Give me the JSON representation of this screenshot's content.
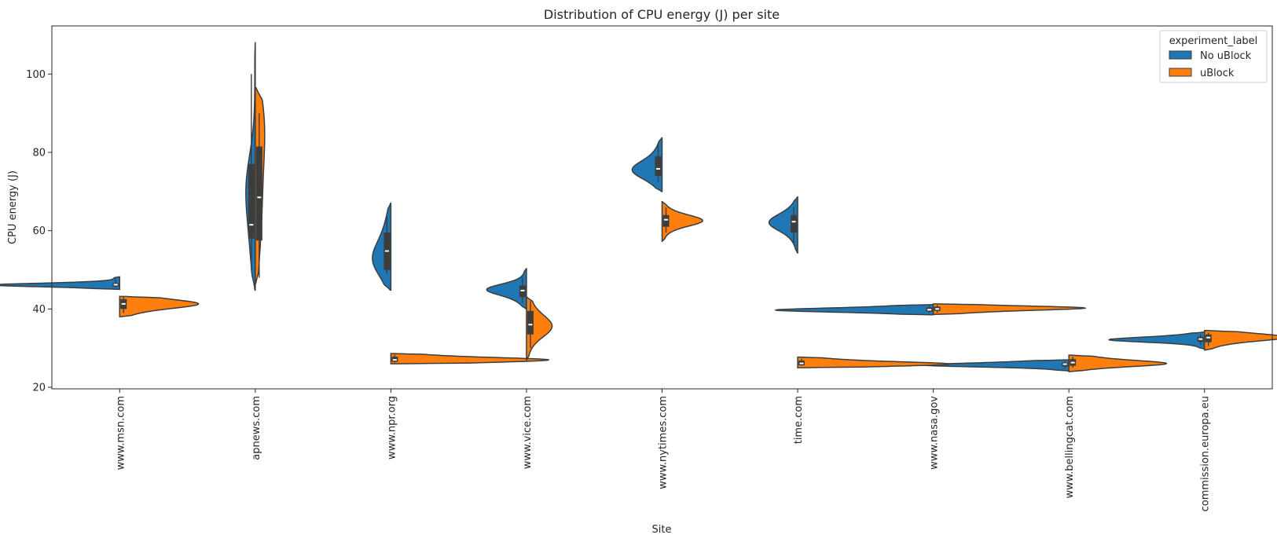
{
  "chart_data": {
    "type": "violin",
    "split": true,
    "title": "Distribution of CPU energy (J) per site",
    "xlabel": "Site",
    "ylabel": "CPU energy (J)",
    "ylim": [
      19.6,
      112.3
    ],
    "yticks": [
      20,
      40,
      60,
      80,
      100
    ],
    "grid": false,
    "legend": {
      "title": "experiment_label",
      "position": "top-right",
      "entries": [
        {
          "name": "No uBlock",
          "color": "#1f77b4"
        },
        {
          "name": "uBlock",
          "color": "#ff7f0e"
        }
      ]
    },
    "categories": [
      "www.msn.com",
      "apnews.com",
      "www.npr.org",
      "www.vice.com",
      "www.nytimes.com",
      "time.com",
      "www.nasa.gov",
      "www.bellingcat.com",
      "commission.europa.eu"
    ],
    "series": [
      {
        "name": "No uBlock",
        "color": "#1f77b4",
        "values": [
          {
            "min": 45.5,
            "q1": 45.7,
            "median": 46.2,
            "q3": 46.6,
            "max": 47.6,
            "range": [
              45.0,
              48.2
            ],
            "peak": 46.1
          },
          {
            "min": 50.0,
            "q1": 58.0,
            "median": 61.5,
            "q3": 77.0,
            "max": 100.0,
            "range": [
              44.8,
              108.0
            ],
            "peak": 72.0
          },
          {
            "min": 49.0,
            "q1": 50.0,
            "median": 54.8,
            "q3": 59.5,
            "max": 63.5,
            "range": [
              44.8,
              67.0
            ],
            "peak": 52.5
          },
          {
            "min": 41.5,
            "q1": 43.0,
            "median": 44.7,
            "q3": 46.0,
            "max": 48.0,
            "range": [
              40.0,
              50.3
            ],
            "peak": 45.0
          },
          {
            "min": 72.5,
            "q1": 74.0,
            "median": 75.8,
            "q3": 79.0,
            "max": 82.0,
            "range": [
              70.0,
              83.7
            ],
            "peak": 75.5
          },
          {
            "min": 57.0,
            "q1": 59.5,
            "median": 62.3,
            "q3": 64.0,
            "max": 66.0,
            "range": [
              54.3,
              68.6
            ],
            "peak": 62.0
          },
          {
            "min": 39.0,
            "q1": 39.3,
            "median": 39.8,
            "q3": 40.4,
            "max": 40.9,
            "range": [
              38.5,
              41.1
            ],
            "peak": 39.7
          },
          {
            "min": 24.8,
            "q1": 25.3,
            "median": 25.9,
            "q3": 26.3,
            "max": 26.7,
            "range": [
              24.2,
              27.0
            ],
            "peak": 25.6
          },
          {
            "min": 30.8,
            "q1": 31.6,
            "median": 32.3,
            "q3": 32.9,
            "max": 33.5,
            "range": [
              29.8,
              34.1
            ],
            "peak": 32.1
          }
        ]
      },
      {
        "name": "uBlock",
        "color": "#ff7f0e",
        "values": [
          {
            "min": 39.0,
            "q1": 40.0,
            "median": 41.3,
            "q3": 42.5,
            "max": 43.0,
            "range": [
              38.0,
              43.2
            ],
            "peak": 41.3
          },
          {
            "min": 48.0,
            "q1": 57.5,
            "median": 68.5,
            "q3": 81.5,
            "max": 90.0,
            "range": [
              46.5,
              96.5
            ],
            "peak": 88.0
          },
          {
            "min": 26.3,
            "q1": 26.5,
            "median": 27.0,
            "q3": 27.8,
            "max": 28.3,
            "range": [
              26.0,
              28.6
            ],
            "peak": 27.0
          },
          {
            "min": 30.0,
            "q1": 33.5,
            "median": 36.0,
            "q3": 39.5,
            "max": 42.0,
            "range": [
              27.0,
              43.0
            ],
            "peak": 35.5
          },
          {
            "min": 59.5,
            "q1": 61.0,
            "median": 62.8,
            "q3": 64.0,
            "max": 66.0,
            "range": [
              57.3,
              67.4
            ],
            "peak": 62.5
          },
          {
            "min": 25.5,
            "q1": 25.6,
            "median": 26.1,
            "q3": 26.8,
            "max": 27.3,
            "range": [
              25.0,
              27.7
            ],
            "peak": 25.9
          },
          {
            "min": 39.0,
            "q1": 39.5,
            "median": 40.0,
            "q3": 40.6,
            "max": 41.0,
            "range": [
              38.6,
              41.3
            ],
            "peak": 40.3
          },
          {
            "min": 25.0,
            "q1": 25.5,
            "median": 26.3,
            "q3": 27.2,
            "max": 27.8,
            "range": [
              24.0,
              28.2
            ],
            "peak": 26.0
          },
          {
            "min": 30.5,
            "q1": 31.5,
            "median": 32.7,
            "q3": 33.5,
            "max": 34.0,
            "range": [
              29.5,
              34.5
            ],
            "peak": 32.8
          }
        ]
      }
    ]
  }
}
